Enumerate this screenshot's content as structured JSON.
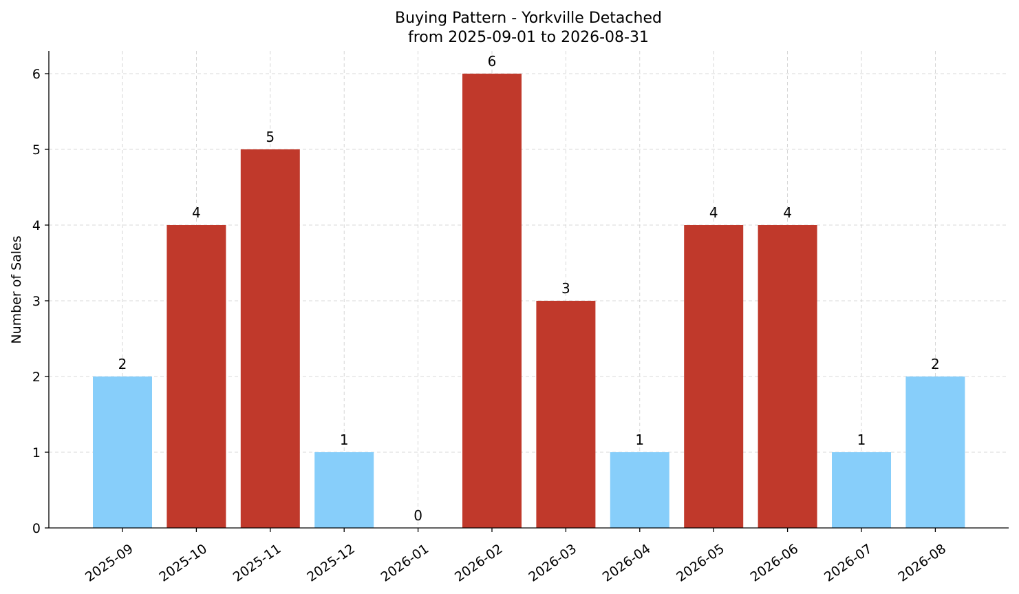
{
  "chart_data": {
    "type": "bar",
    "title": "Buying Pattern - Yorkville Detached",
    "subtitle": "from 2025-09-01 to 2026-08-31",
    "xlabel": "",
    "ylabel": "Number of Sales",
    "categories": [
      "2025-09",
      "2025-10",
      "2025-11",
      "2025-12",
      "2026-01",
      "2026-02",
      "2026-03",
      "2026-04",
      "2026-05",
      "2026-06",
      "2026-07",
      "2026-08"
    ],
    "values": [
      2,
      4,
      5,
      1,
      0,
      6,
      3,
      1,
      4,
      4,
      1,
      2
    ],
    "bar_colors": [
      "#87CEFA",
      "#C0392B",
      "#C0392B",
      "#87CEFA",
      "#C0392B",
      "#C0392B",
      "#C0392B",
      "#87CEFA",
      "#C0392B",
      "#C0392B",
      "#87CEFA",
      "#87CEFA"
    ],
    "y_ticks": [
      0,
      1,
      2,
      3,
      4,
      5,
      6
    ],
    "ylim": [
      0,
      6.3
    ],
    "grid": true,
    "data_labels": true
  }
}
